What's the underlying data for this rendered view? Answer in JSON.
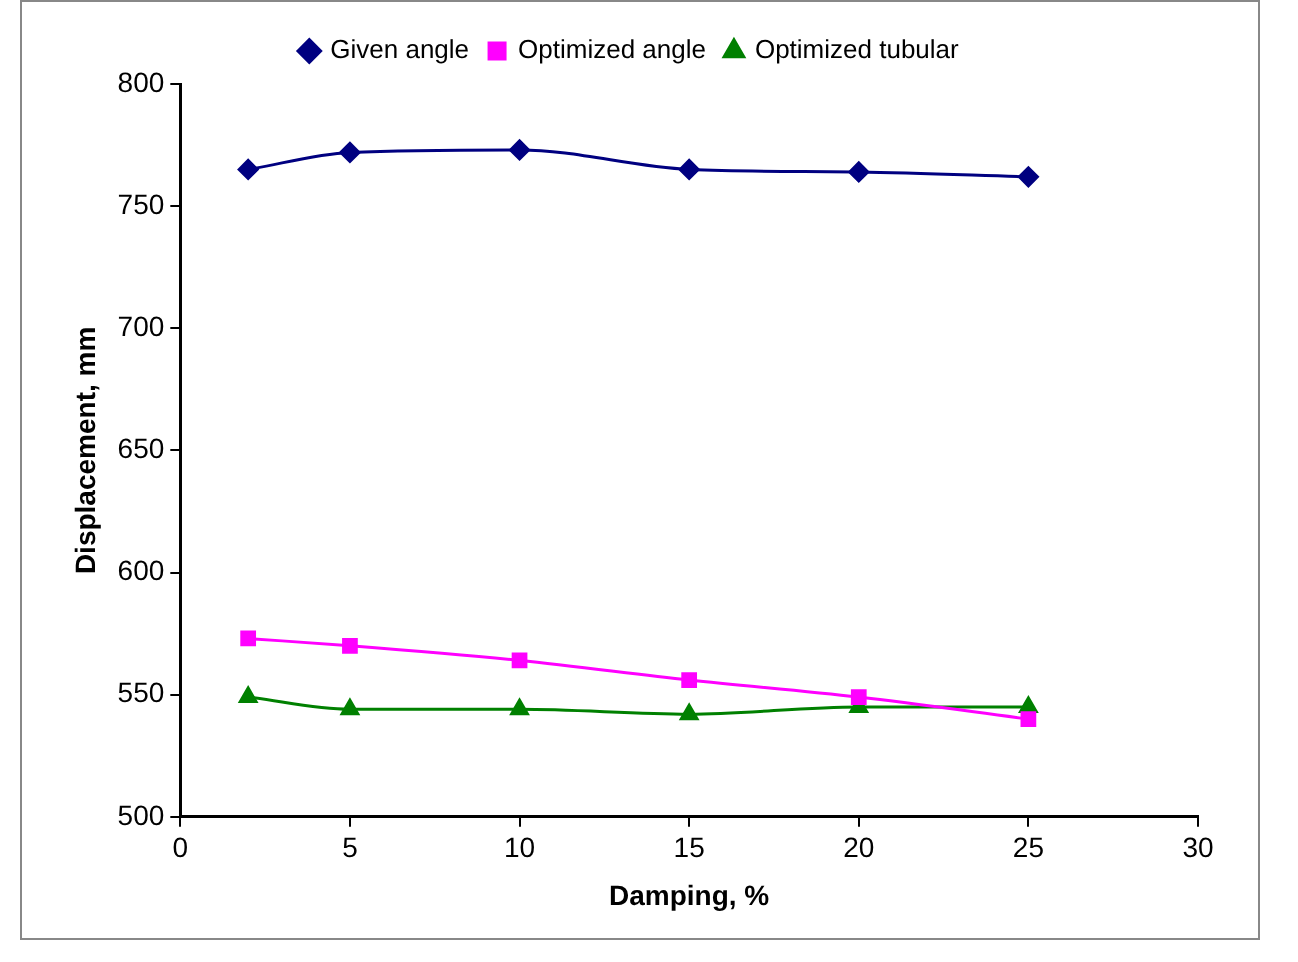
{
  "chart_data": {
    "type": "line",
    "xlabel": "Damping, %",
    "ylabel": "Displacement, mm",
    "x": [
      2,
      5,
      10,
      15,
      20,
      25
    ],
    "series": [
      {
        "name": "Given angle",
        "color": "#000080",
        "marker": "diamond",
        "values": [
          765,
          772,
          773,
          765,
          764,
          762
        ]
      },
      {
        "name": "Optimized angle",
        "color": "#ff00ff",
        "marker": "square",
        "values": [
          573,
          570,
          564,
          556,
          549,
          540
        ]
      },
      {
        "name": "Optimized tubular",
        "color": "#008000",
        "marker": "triangle",
        "values": [
          549,
          544,
          544,
          542,
          545,
          545
        ]
      }
    ],
    "xlim": [
      0,
      30
    ],
    "xticks": [
      0,
      5,
      10,
      15,
      20,
      25,
      30
    ],
    "ylim": [
      500,
      800
    ],
    "yticks": [
      500,
      550,
      600,
      650,
      700,
      750,
      800
    ],
    "grid": false,
    "legend": "top"
  }
}
